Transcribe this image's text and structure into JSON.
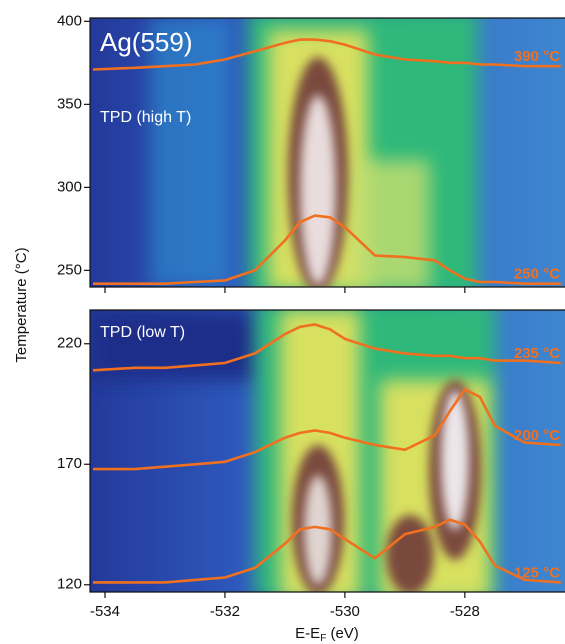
{
  "chart_data": [
    {
      "type": "line",
      "title": "Ag(559)",
      "annotation": "TPD (high T)",
      "ylabel": "Temperature (°C)",
      "x": [
        -534.2,
        -533.5,
        -533,
        -532.5,
        -532,
        -531.5,
        -531,
        -530.75,
        -530.5,
        -530.25,
        -530,
        -529.5,
        -529,
        -528.5,
        -528.25,
        -528,
        -527.75,
        -527.5,
        -527,
        -526.4
      ],
      "series": [
        {
          "name": "390 °C",
          "color": "#f07020",
          "values": [
            371,
            372,
            373,
            374,
            377,
            382,
            387,
            389,
            389,
            388,
            386,
            380,
            377,
            376,
            375,
            375,
            374,
            374,
            373,
            373
          ]
        },
        {
          "name": "250 °C",
          "color": "#f07020",
          "values": [
            242,
            242,
            242,
            243,
            244,
            250,
            268,
            279,
            283,
            282,
            276,
            259,
            258,
            256,
            250,
            245,
            243,
            243,
            242,
            242
          ]
        }
      ],
      "xlim": [
        -534.25,
        -526.33
      ],
      "ylim": [
        240,
        402
      ],
      "yticks": [
        250,
        300,
        350,
        400
      ]
    },
    {
      "type": "line",
      "annotation": "TPD (low T)",
      "xlabel": [
        "E-E",
        "F",
        " (eV)"
      ],
      "x": [
        -534.2,
        -533.5,
        -533,
        -532.5,
        -532,
        -531.5,
        -531,
        -530.75,
        -530.5,
        -530.25,
        -530,
        -529.5,
        -529,
        -528.5,
        -528.25,
        -528,
        -527.75,
        -527.5,
        -527,
        -526.4
      ],
      "series": [
        {
          "name": "235 °C",
          "color": "#f07020",
          "values": [
            209,
            210,
            210,
            211,
            212,
            216,
            224,
            227,
            228,
            226,
            222,
            218,
            216,
            215,
            215,
            214,
            214,
            213,
            213,
            212
          ]
        },
        {
          "name": "200 °C",
          "color": "#f07020",
          "values": [
            168,
            168,
            169,
            170,
            171,
            175,
            181,
            183,
            184,
            183,
            181,
            178,
            176,
            182,
            192,
            201,
            198,
            186,
            179,
            178
          ]
        },
        {
          "name": "125 °C",
          "color": "#f07020",
          "values": [
            121,
            121,
            121,
            122,
            123,
            127,
            137,
            143,
            144,
            143,
            139,
            131,
            141,
            144,
            147,
            145,
            138,
            128,
            122,
            121
          ]
        }
      ],
      "xlim": [
        -534.25,
        -526.33
      ],
      "ylim": [
        117,
        234
      ],
      "yticks": [
        120,
        170,
        220
      ],
      "xticks": [
        -534,
        -532,
        -530,
        -528
      ]
    }
  ]
}
